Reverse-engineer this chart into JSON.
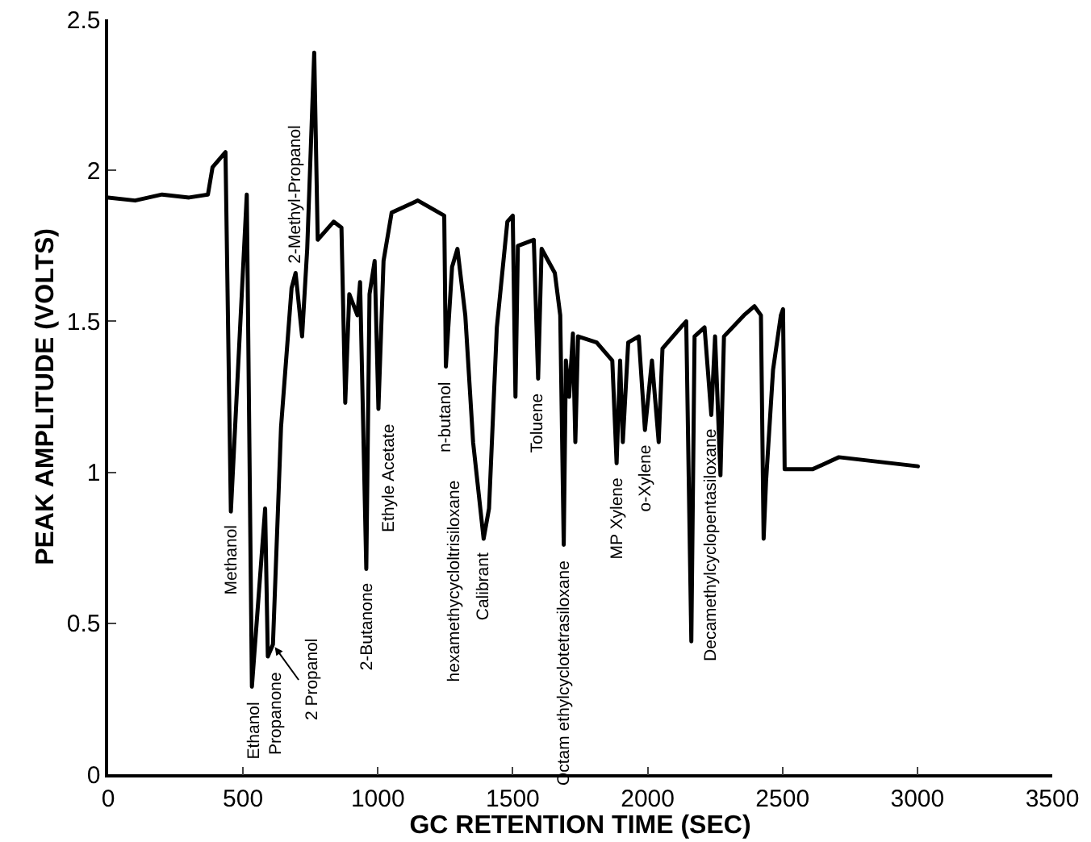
{
  "chart_data": {
    "type": "line",
    "xlabel": "GC RETENTION TIME (SEC)",
    "ylabel": "PEAK AMPLITUDE (VOLTS)",
    "x": [
      0,
      100,
      200,
      300,
      370,
      387,
      435,
      455,
      514,
      533,
      582,
      592,
      611,
      641,
      680,
      695,
      719,
      738,
      764,
      777,
      836,
      865,
      879,
      894,
      924,
      934,
      957,
      969,
      988,
      1002,
      1021,
      1051,
      1148,
      1246,
      1252,
      1275,
      1295,
      1324,
      1353,
      1392,
      1412,
      1441,
      1480,
      1500,
      1510,
      1519,
      1578,
      1594,
      1607,
      1656,
      1676,
      1689,
      1697,
      1709,
      1723,
      1732,
      1742,
      1811,
      1869,
      1885,
      1898,
      1908,
      1928,
      1967,
      1990,
      2016,
      2041,
      2055,
      2123,
      2143,
      2162,
      2174,
      2211,
      2236,
      2250,
      2270,
      2283,
      2357,
      2396,
      2420,
      2430,
      2439,
      2465,
      2494,
      2502,
      2508,
      2611,
      2709,
      2904,
      3002
    ],
    "series": [
      {
        "color": "#000000",
        "values": [
          1.91,
          1.9,
          1.92,
          1.91,
          1.92,
          2.01,
          2.06,
          0.87,
          1.92,
          0.29,
          0.88,
          0.39,
          0.43,
          1.15,
          1.61,
          1.66,
          1.45,
          1.74,
          2.39,
          1.77,
          1.83,
          1.81,
          1.23,
          1.59,
          1.52,
          1.63,
          0.68,
          1.59,
          1.7,
          1.21,
          1.7,
          1.86,
          1.9,
          1.85,
          1.35,
          1.68,
          1.74,
          1.52,
          1.1,
          0.78,
          0.88,
          1.48,
          1.83,
          1.85,
          1.25,
          1.75,
          1.77,
          1.31,
          1.74,
          1.66,
          1.52,
          0.76,
          1.37,
          1.25,
          1.46,
          1.1,
          1.45,
          1.43,
          1.37,
          1.03,
          1.37,
          1.1,
          1.43,
          1.45,
          1.14,
          1.37,
          1.1,
          1.41,
          1.48,
          1.5,
          0.44,
          1.45,
          1.48,
          1.19,
          1.45,
          0.99,
          1.45,
          1.52,
          1.55,
          1.52,
          0.78,
          0.97,
          1.34,
          1.52,
          1.54,
          1.01,
          1.01,
          1.05,
          1.03,
          1.02
        ]
      }
    ],
    "xlim": [
      0,
      3500
    ],
    "xticks": [
      0,
      500,
      1000,
      1500,
      2000,
      2500,
      3000,
      3500
    ],
    "ylim": [
      0,
      2.5
    ],
    "yticks": [
      0,
      0.5,
      1,
      1.5,
      2,
      2.5
    ],
    "grid": false,
    "marker": "none",
    "line_style": "solid",
    "annotations": [
      {
        "text": "Methanol",
        "x": 455,
        "y": 0.87
      },
      {
        "text": "Ethanol",
        "x": 533,
        "y": 0.29
      },
      {
        "text": "Propanone",
        "x": 592,
        "y": 0.39
      },
      {
        "text": "2 Propanol",
        "x": 611,
        "y": 0.43
      },
      {
        "text": "2-Methyl-Propanol",
        "x": 695,
        "y": 1.66
      },
      {
        "text": "2-Butanone",
        "x": 957,
        "y": 0.68
      },
      {
        "text": "Ethyle Acetate",
        "x": 1002,
        "y": 1.21
      },
      {
        "text": "n-butanol",
        "x": 1252,
        "y": 1.35
      },
      {
        "text": "hexamethycycloltrisiloxane",
        "x": 1353,
        "y": 1.1
      },
      {
        "text": "Calibrant",
        "x": 1392,
        "y": 0.78
      },
      {
        "text": "Toluene",
        "x": 1594,
        "y": 1.31
      },
      {
        "text": "Octam ethylcyclotetrasiloxane",
        "x": 1689,
        "y": 0.76
      },
      {
        "text": "MP Xylene",
        "x": 1885,
        "y": 1.03
      },
      {
        "text": "o-Xylene",
        "x": 1990,
        "y": 1.14
      },
      {
        "text": "Decamethylcyclopentasiloxane",
        "x": 2236,
        "y": 1.19
      }
    ]
  }
}
